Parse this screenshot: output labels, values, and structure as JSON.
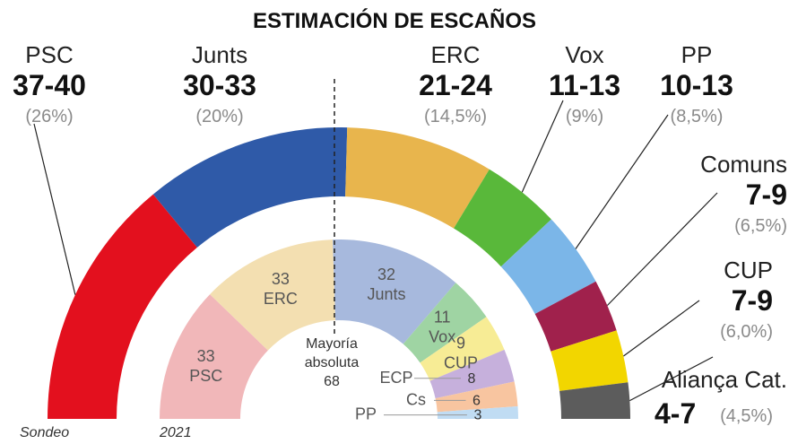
{
  "title": "ESTIMACIÓN DE ESCAÑOS",
  "colors": {
    "PSC": "#e3101e",
    "Junts": "#2f5aa8",
    "ERC": "#e8b54d",
    "Vox": "#59b83a",
    "PP": "#7bb6e8",
    "Comuns": "#a0214c",
    "CUP": "#f2d600",
    "Aliança Cat.": "#5c5c5c",
    "in_PSC": "#f1b7b9",
    "in_ERC": "#f3dfb1",
    "in_Junts": "#a7b9dd",
    "in_Vox": "#9fd4a3",
    "in_CUP": "#f7ec95",
    "in_ECP": "#c6b0dc",
    "in_Cs": "#f8c5a0",
    "in_PP": "#c0dcf3"
  },
  "chart_data": [
    {
      "type": "pie",
      "subtype": "parliament-hemicycle",
      "caption": "Sondeo",
      "series": [
        {
          "party": "PSC",
          "seats": "37-40",
          "pct": "(26%)",
          "value": 38.5
        },
        {
          "party": "Junts",
          "seats": "30-33",
          "pct": "(20%)",
          "value": 31.5
        },
        {
          "party": "ERC",
          "seats": "21-24",
          "pct": "(14,5%)",
          "value": 22.5
        },
        {
          "party": "Vox",
          "seats": "11-13",
          "pct": "(9%)",
          "value": 12
        },
        {
          "party": "PP",
          "seats": "10-13",
          "pct": "(8,5%)",
          "value": 11.5
        },
        {
          "party": "Comuns",
          "seats": "7-9",
          "pct": "(6,5%)",
          "value": 8
        },
        {
          "party": "CUP",
          "seats": "7-9",
          "pct": "(6,0%)",
          "value": 8
        },
        {
          "party": "Aliança Cat.",
          "seats": "4-7",
          "pct": "(4,5%)",
          "value": 5.5
        }
      ]
    },
    {
      "type": "pie",
      "subtype": "parliament-hemicycle",
      "caption": "2021",
      "series": [
        {
          "party": "PSC",
          "value": 33
        },
        {
          "party": "ERC",
          "value": 33
        },
        {
          "party": "Junts",
          "value": 32
        },
        {
          "party": "Vox",
          "value": 11
        },
        {
          "party": "CUP",
          "value": 9
        },
        {
          "party": "ECP",
          "value": 8
        },
        {
          "party": "Cs",
          "value": 6
        },
        {
          "party": "PP",
          "value": 3
        }
      ]
    }
  ],
  "majority": {
    "line1": "Mayoría",
    "line2": "absoluta",
    "value": "68"
  }
}
